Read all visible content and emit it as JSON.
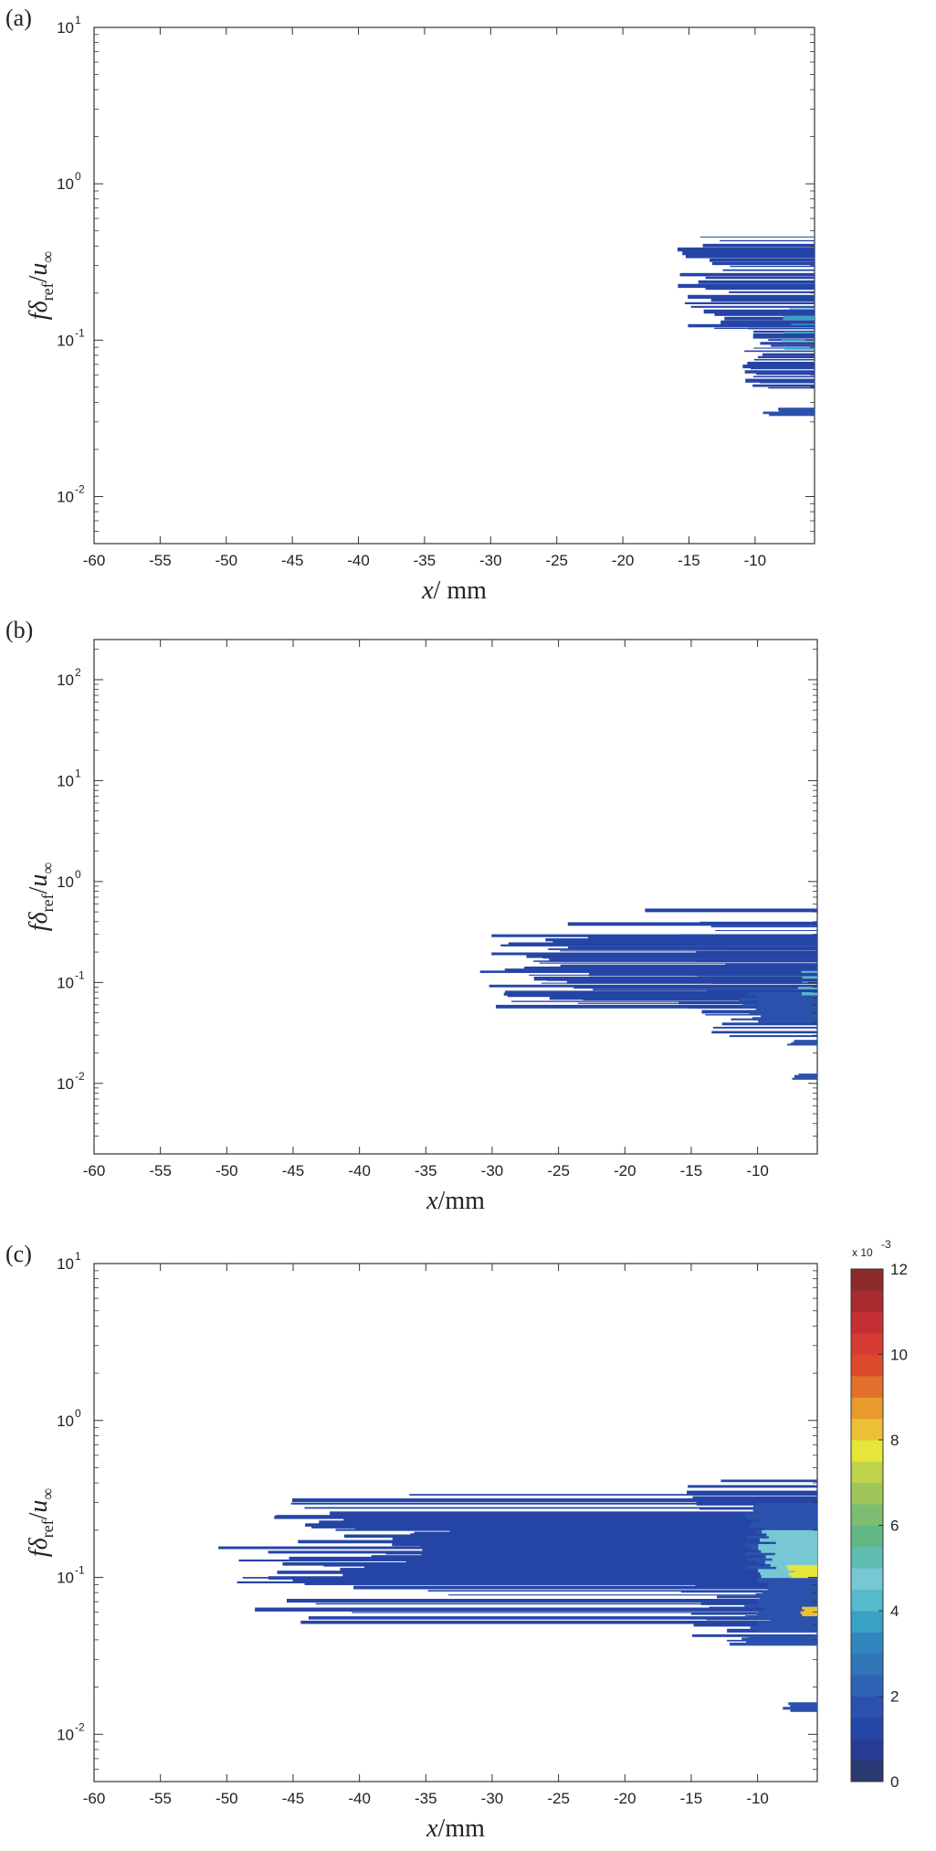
{
  "chart_data": [
    {
      "panel": "(a)",
      "type": "heatmap",
      "xlabel_italic": "x",
      "xlabel_rest": "/ mm",
      "ylabel": {
        "f": "f",
        "delta": "δ",
        "sub": "ref",
        "slash": "/",
        "u": "u",
        "inf": "∞"
      },
      "xlim": [
        -60,
        -5.5
      ],
      "ylim": [
        0.005,
        10
      ],
      "y_scale": "log",
      "x_ticks": [
        -60,
        -55,
        -50,
        -45,
        -40,
        -35,
        -30,
        -25,
        -20,
        -15,
        -10
      ],
      "y_ticks": [
        0.01,
        0.1,
        1,
        10
      ],
      "y_tick_labels": [
        {
          "base": "10",
          "exp": "-2"
        },
        {
          "base": "10",
          "exp": "-1"
        },
        {
          "base": "10",
          "exp": "0"
        },
        {
          "base": "10",
          "exp": "1"
        }
      ],
      "regions": [
        {
          "x_start": -9.5,
          "y_min": 0.033,
          "y_max": 0.037,
          "level": 1.5,
          "solid": true
        },
        {
          "x_start": -11,
          "y_min": 0.05,
          "y_max": 0.12,
          "level": 1.2,
          "solid": false,
          "lines": 22
        },
        {
          "x_start": -16,
          "y_min": 0.12,
          "y_max": 0.46,
          "level": 1.0,
          "solid": false,
          "lines": 26
        },
        {
          "x_start": -8,
          "y_min": 0.09,
          "y_max": 0.16,
          "level": 3.5,
          "solid": false,
          "lines": 6
        }
      ]
    },
    {
      "panel": "(b)",
      "type": "heatmap",
      "xlabel_italic": "x",
      "xlabel_rest": "/mm",
      "ylabel": {
        "f": "f",
        "delta": "δ",
        "sub": "ref",
        "slash": "/",
        "u": "u",
        "inf": "∞"
      },
      "xlim": [
        -60,
        -5.5
      ],
      "ylim": [
        0.002,
        250
      ],
      "y_scale": "log",
      "x_ticks": [
        -60,
        -55,
        -50,
        -45,
        -40,
        -35,
        -30,
        -25,
        -20,
        -15,
        -10
      ],
      "y_ticks": [
        0.01,
        0.1,
        1,
        10,
        100
      ],
      "y_tick_labels": [
        {
          "base": "10",
          "exp": "-2"
        },
        {
          "base": "10",
          "exp": "-1"
        },
        {
          "base": "10",
          "exp": "0"
        },
        {
          "base": "10",
          "exp": "1"
        },
        {
          "base": "10",
          "exp": "2"
        }
      ],
      "regions": [
        {
          "x_start": -31,
          "y_min": 0.06,
          "y_max": 0.3,
          "level": 1.0,
          "solid": false,
          "lines": 36
        },
        {
          "x_start": -16,
          "y_min": 0.03,
          "y_max": 0.4,
          "level": 1.2,
          "solid": false,
          "lines": 28
        },
        {
          "x_start": -11.5,
          "y_min": 0.04,
          "y_max": 0.08,
          "level": 1.6,
          "solid": true
        },
        {
          "x_start": -8,
          "y_min": 0.024,
          "y_max": 0.027,
          "level": 1.5,
          "solid": true
        },
        {
          "x_start": -7.5,
          "y_min": 0.011,
          "y_max": 0.0125,
          "level": 1.5,
          "solid": true
        },
        {
          "x_start": -7,
          "y_min": 0.08,
          "y_max": 0.13,
          "level": 4.0,
          "solid": false,
          "lines": 5
        },
        {
          "x_start": -32,
          "y_min": 0.39,
          "y_max": 0.4,
          "level": 1.0,
          "solid": false,
          "lines": 1
        },
        {
          "x_start": -19,
          "y_min": 0.53,
          "y_max": 0.55,
          "level": 1.0,
          "solid": false,
          "lines": 1
        }
      ]
    },
    {
      "panel": "(c)",
      "type": "heatmap",
      "xlabel_italic": "x",
      "xlabel_rest": "/mm",
      "ylabel": {
        "f": "f",
        "delta": "δ",
        "sub": "ref",
        "slash": "/",
        "u": "u",
        "inf": "∞"
      },
      "xlim": [
        -60,
        -5.5
      ],
      "ylim": [
        0.005,
        10
      ],
      "y_scale": "log",
      "x_ticks": [
        -60,
        -55,
        -50,
        -45,
        -40,
        -35,
        -30,
        -25,
        -20,
        -15,
        -10
      ],
      "y_ticks": [
        0.01,
        0.1,
        1,
        10
      ],
      "y_tick_labels": [
        {
          "base": "10",
          "exp": "-2"
        },
        {
          "base": "10",
          "exp": "-1"
        },
        {
          "base": "10",
          "exp": "0"
        },
        {
          "base": "10",
          "exp": "1"
        }
      ],
      "regions": [
        {
          "x_start": -51,
          "y_min": 0.053,
          "y_max": 0.34,
          "level": 1.0,
          "solid": false,
          "lines": 30
        },
        {
          "x_start": -47,
          "y_min": 0.09,
          "y_max": 0.25,
          "level": 1.3,
          "solid": true
        },
        {
          "x_start": -30,
          "y_min": 0.2,
          "y_max": 0.26,
          "level": 1.0,
          "solid": false,
          "lines": 3
        },
        {
          "x_start": -16,
          "y_min": 0.04,
          "y_max": 0.42,
          "level": 1.3,
          "solid": false,
          "lines": 30
        },
        {
          "x_start": -11,
          "y_min": 0.045,
          "y_max": 0.3,
          "level": 1.8,
          "solid": true
        },
        {
          "x_start": -13,
          "y_min": 0.037,
          "y_max": 0.043,
          "level": 1.5,
          "solid": true
        },
        {
          "x_start": -8.5,
          "y_min": 0.014,
          "y_max": 0.016,
          "level": 1.5,
          "solid": true
        },
        {
          "x_start": -10,
          "y_min": 0.1,
          "y_max": 0.2,
          "level": 4.5,
          "solid": true
        },
        {
          "x_start": -8,
          "y_min": 0.1,
          "y_max": 0.12,
          "level": 7.5,
          "solid": true
        },
        {
          "x_start": -7,
          "y_min": 0.057,
          "y_max": 0.065,
          "level": 8.0,
          "solid": true
        }
      ],
      "colorbar": {
        "min": 0,
        "max": 12,
        "ticks": [
          0,
          2,
          4,
          6,
          8,
          10,
          12
        ],
        "scale_label": "x 10",
        "scale_exp": "-3",
        "colormap": [
          "#2a3a70",
          "#263c92",
          "#2545a6",
          "#2a52ad",
          "#2e63b3",
          "#2f75b8",
          "#3185bc",
          "#39a1c4",
          "#57b9cc",
          "#77c8d4",
          "#5fbcb2",
          "#62b885",
          "#7cbd72",
          "#9ec65a",
          "#bed24b",
          "#e6e63a",
          "#ecc035",
          "#e89a2f",
          "#e2702a",
          "#dd4a2b",
          "#d63b34",
          "#c42f33",
          "#a82b30",
          "#8c2a2c"
        ]
      }
    }
  ]
}
